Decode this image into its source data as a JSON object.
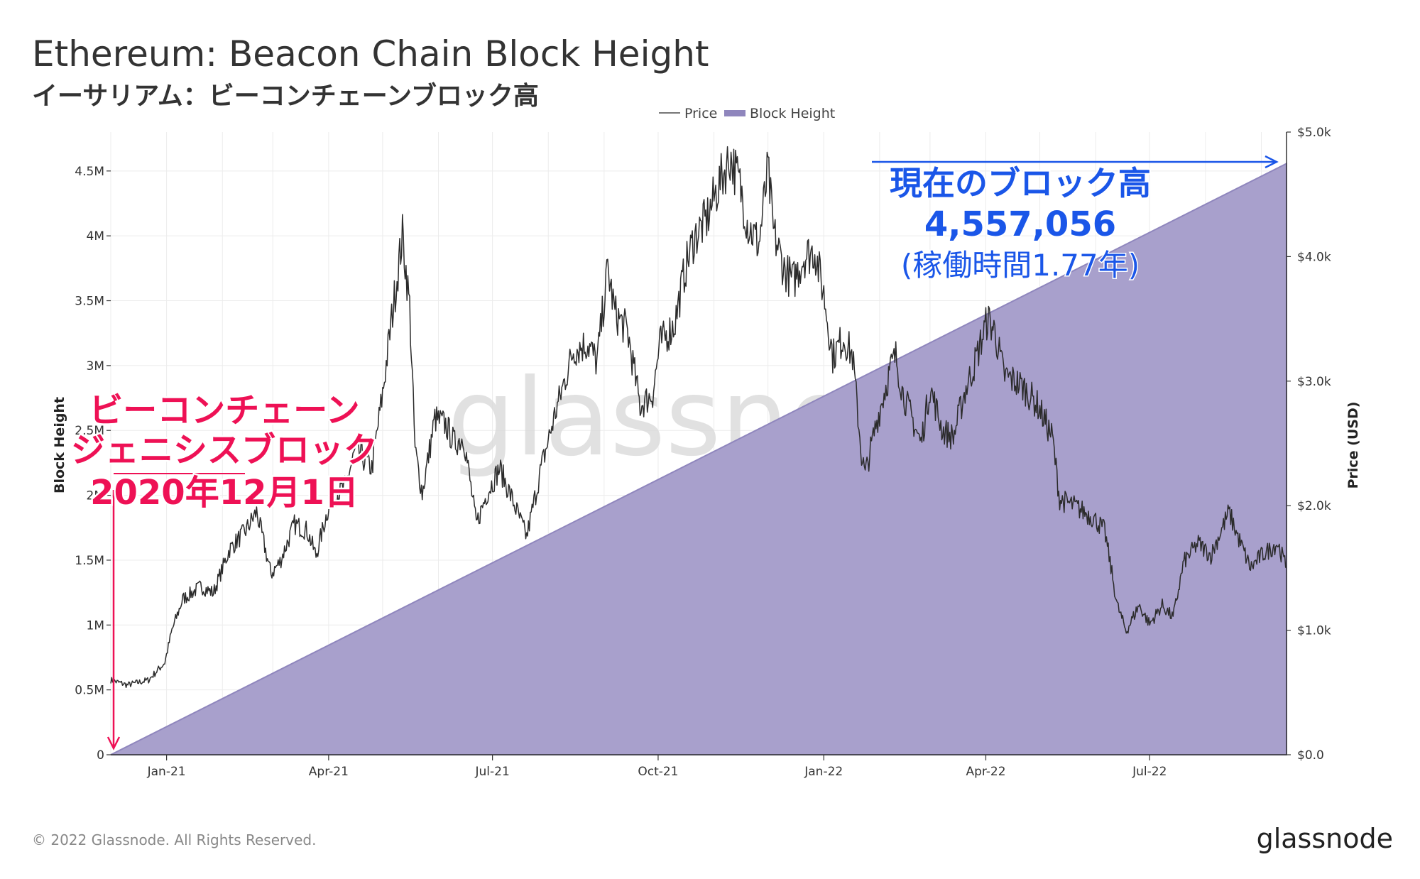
{
  "header": {
    "title": "Ethereum: Beacon Chain Block Height",
    "subtitle": "イーサリアム：ビーコンチェーンブロック高"
  },
  "footer": {
    "copyright": "© 2022 Glassnode. All Rights Reserved.",
    "logo": "glassnode"
  },
  "watermark": "glassnode",
  "colors": {
    "area_fill": "#a8a0cc",
    "area_stroke": "#8f86bd",
    "price_line": "#2b2b2b",
    "annotation_red": "#ee1155",
    "annotation_blue": "#1a56e8",
    "grid": "#ececec"
  },
  "annotations": {
    "genesis": {
      "line1": "ビーコンチェーン",
      "line2": "ジェニシスブロック",
      "line3": "2020年12月1日"
    },
    "current": {
      "line1": "現在のブロック高",
      "line2": "4,557,056",
      "line3": "(稼働時間1.77年)"
    }
  },
  "chart_data": {
    "type": "area",
    "title": "Ethereum: Beacon Chain Block Height",
    "subtitle": "イーサリアム：ビーコンチェーンブロック高",
    "legend": {
      "position": "top-center",
      "entries": [
        "Price",
        "Block Height"
      ]
    },
    "x_axis": {
      "start": "2020-12-01",
      "end": "2022-09-15",
      "ticks": [
        {
          "date": "2021-01-01",
          "label": "Jan-21"
        },
        {
          "date": "2021-04-01",
          "label": "Apr-21"
        },
        {
          "date": "2021-07-01",
          "label": "Jul-21"
        },
        {
          "date": "2021-10-01",
          "label": "Oct-21"
        },
        {
          "date": "2022-01-01",
          "label": "Jan-22"
        },
        {
          "date": "2022-04-01",
          "label": "Apr-22"
        },
        {
          "date": "2022-07-01",
          "label": "Jul-22"
        }
      ]
    },
    "y_left": {
      "label": "Block Height",
      "range": [
        0,
        4800000
      ],
      "ticks": [
        {
          "value": 0,
          "label": "0"
        },
        {
          "value": 500000,
          "label": "0.5M"
        },
        {
          "value": 1000000,
          "label": "1M"
        },
        {
          "value": 1500000,
          "label": "1.5M"
        },
        {
          "value": 2000000,
          "label": "2M"
        },
        {
          "value": 2500000,
          "label": "2.5M"
        },
        {
          "value": 3000000,
          "label": "3M"
        },
        {
          "value": 3500000,
          "label": "3.5M"
        },
        {
          "value": 4000000,
          "label": "4M"
        },
        {
          "value": 4500000,
          "label": "4.5M"
        }
      ]
    },
    "y_right": {
      "label": "Price (USD)",
      "range": [
        0,
        5000
      ],
      "ticks": [
        {
          "value": 0,
          "label": "$0.0"
        },
        {
          "value": 1000,
          "label": "$1.0k"
        },
        {
          "value": 2000,
          "label": "$2.0k"
        },
        {
          "value": 3000,
          "label": "$3.0k"
        },
        {
          "value": 4000,
          "label": "$4.0k"
        },
        {
          "value": 5000,
          "label": "$5.0k"
        }
      ]
    },
    "grid": true,
    "series": [
      {
        "name": "Block Height",
        "type": "area",
        "axis": "left",
        "points": [
          {
            "date": "2020-12-01",
            "value": 0
          },
          {
            "date": "2022-09-15",
            "value": 4557056
          }
        ]
      },
      {
        "name": "Price",
        "type": "line",
        "axis": "right",
        "points": [
          {
            "date": "2020-12-01",
            "value": 600
          },
          {
            "date": "2020-12-10",
            "value": 560
          },
          {
            "date": "2020-12-22",
            "value": 600
          },
          {
            "date": "2020-12-31",
            "value": 740
          },
          {
            "date": "2021-01-04",
            "value": 1000
          },
          {
            "date": "2021-01-10",
            "value": 1250
          },
          {
            "date": "2021-01-20",
            "value": 1350
          },
          {
            "date": "2021-01-27",
            "value": 1300
          },
          {
            "date": "2021-02-05",
            "value": 1650
          },
          {
            "date": "2021-02-14",
            "value": 1800
          },
          {
            "date": "2021-02-20",
            "value": 1950
          },
          {
            "date": "2021-02-28",
            "value": 1450
          },
          {
            "date": "2021-03-05",
            "value": 1550
          },
          {
            "date": "2021-03-13",
            "value": 1850
          },
          {
            "date": "2021-03-20",
            "value": 1800
          },
          {
            "date": "2021-03-25",
            "value": 1600
          },
          {
            "date": "2021-04-02",
            "value": 2050
          },
          {
            "date": "2021-04-10",
            "value": 2150
          },
          {
            "date": "2021-04-16",
            "value": 2450
          },
          {
            "date": "2021-04-25",
            "value": 2300
          },
          {
            "date": "2021-05-01",
            "value": 2900
          },
          {
            "date": "2021-05-06",
            "value": 3500
          },
          {
            "date": "2021-05-12",
            "value": 4170
          },
          {
            "date": "2021-05-16",
            "value": 3600
          },
          {
            "date": "2021-05-19",
            "value": 2450
          },
          {
            "date": "2021-05-23",
            "value": 2100
          },
          {
            "date": "2021-05-30",
            "value": 2700
          },
          {
            "date": "2021-06-05",
            "value": 2650
          },
          {
            "date": "2021-06-10",
            "value": 2500
          },
          {
            "date": "2021-06-15",
            "value": 2550
          },
          {
            "date": "2021-06-22",
            "value": 1850
          },
          {
            "date": "2021-06-28",
            "value": 2100
          },
          {
            "date": "2021-07-05",
            "value": 2300
          },
          {
            "date": "2021-07-12",
            "value": 2050
          },
          {
            "date": "2021-07-20",
            "value": 1750
          },
          {
            "date": "2021-07-28",
            "value": 2300
          },
          {
            "date": "2021-08-05",
            "value": 2750
          },
          {
            "date": "2021-08-15",
            "value": 3250
          },
          {
            "date": "2021-08-23",
            "value": 3300
          },
          {
            "date": "2021-08-28",
            "value": 3150
          },
          {
            "date": "2021-09-03",
            "value": 3900
          },
          {
            "date": "2021-09-07",
            "value": 3550
          },
          {
            "date": "2021-09-14",
            "value": 3400
          },
          {
            "date": "2021-09-21",
            "value": 2800
          },
          {
            "date": "2021-09-28",
            "value": 2900
          },
          {
            "date": "2021-10-02",
            "value": 3300
          },
          {
            "date": "2021-10-10",
            "value": 3450
          },
          {
            "date": "2021-10-16",
            "value": 3900
          },
          {
            "date": "2021-10-21",
            "value": 4150
          },
          {
            "date": "2021-10-28",
            "value": 4300
          },
          {
            "date": "2021-11-03",
            "value": 4550
          },
          {
            "date": "2021-11-10",
            "value": 4800
          },
          {
            "date": "2021-11-15",
            "value": 4600
          },
          {
            "date": "2021-11-20",
            "value": 4250
          },
          {
            "date": "2021-11-26",
            "value": 4100
          },
          {
            "date": "2021-12-01",
            "value": 4700
          },
          {
            "date": "2021-12-04",
            "value": 4200
          },
          {
            "date": "2021-12-10",
            "value": 3900
          },
          {
            "date": "2021-12-15",
            "value": 3800
          },
          {
            "date": "2021-12-21",
            "value": 4000
          },
          {
            "date": "2021-12-27",
            "value": 4050
          },
          {
            "date": "2022-01-01",
            "value": 3700
          },
          {
            "date": "2022-01-06",
            "value": 3200
          },
          {
            "date": "2022-01-12",
            "value": 3350
          },
          {
            "date": "2022-01-17",
            "value": 3200
          },
          {
            "date": "2022-01-22",
            "value": 2400
          },
          {
            "date": "2022-01-24",
            "value": 2250
          },
          {
            "date": "2022-01-30",
            "value": 2650
          },
          {
            "date": "2022-02-07",
            "value": 3100
          },
          {
            "date": "2022-02-10",
            "value": 3200
          },
          {
            "date": "2022-02-14",
            "value": 2900
          },
          {
            "date": "2022-02-24",
            "value": 2500
          },
          {
            "date": "2022-03-01",
            "value": 2950
          },
          {
            "date": "2022-03-08",
            "value": 2600
          },
          {
            "date": "2022-03-14",
            "value": 2550
          },
          {
            "date": "2022-03-20",
            "value": 2900
          },
          {
            "date": "2022-03-26",
            "value": 3150
          },
          {
            "date": "2022-04-02",
            "value": 3500
          },
          {
            "date": "2022-04-06",
            "value": 3400
          },
          {
            "date": "2022-04-11",
            "value": 3050
          },
          {
            "date": "2022-04-17",
            "value": 3000
          },
          {
            "date": "2022-04-22",
            "value": 2950
          },
          {
            "date": "2022-04-30",
            "value": 2800
          },
          {
            "date": "2022-05-08",
            "value": 2550
          },
          {
            "date": "2022-05-12",
            "value": 2050
          },
          {
            "date": "2022-05-20",
            "value": 2000
          },
          {
            "date": "2022-05-31",
            "value": 1900
          },
          {
            "date": "2022-06-06",
            "value": 1800
          },
          {
            "date": "2022-06-13",
            "value": 1200
          },
          {
            "date": "2022-06-18",
            "value": 990
          },
          {
            "date": "2022-06-25",
            "value": 1200
          },
          {
            "date": "2022-07-01",
            "value": 1050
          },
          {
            "date": "2022-07-08",
            "value": 1200
          },
          {
            "date": "2022-07-14",
            "value": 1100
          },
          {
            "date": "2022-07-20",
            "value": 1550
          },
          {
            "date": "2022-07-28",
            "value": 1700
          },
          {
            "date": "2022-08-04",
            "value": 1600
          },
          {
            "date": "2022-08-14",
            "value": 1950
          },
          {
            "date": "2022-08-19",
            "value": 1750
          },
          {
            "date": "2022-08-26",
            "value": 1500
          },
          {
            "date": "2022-09-01",
            "value": 1600
          },
          {
            "date": "2022-09-06",
            "value": 1650
          },
          {
            "date": "2022-09-10",
            "value": 1700
          },
          {
            "date": "2022-09-15",
            "value": 1500
          }
        ]
      }
    ]
  }
}
